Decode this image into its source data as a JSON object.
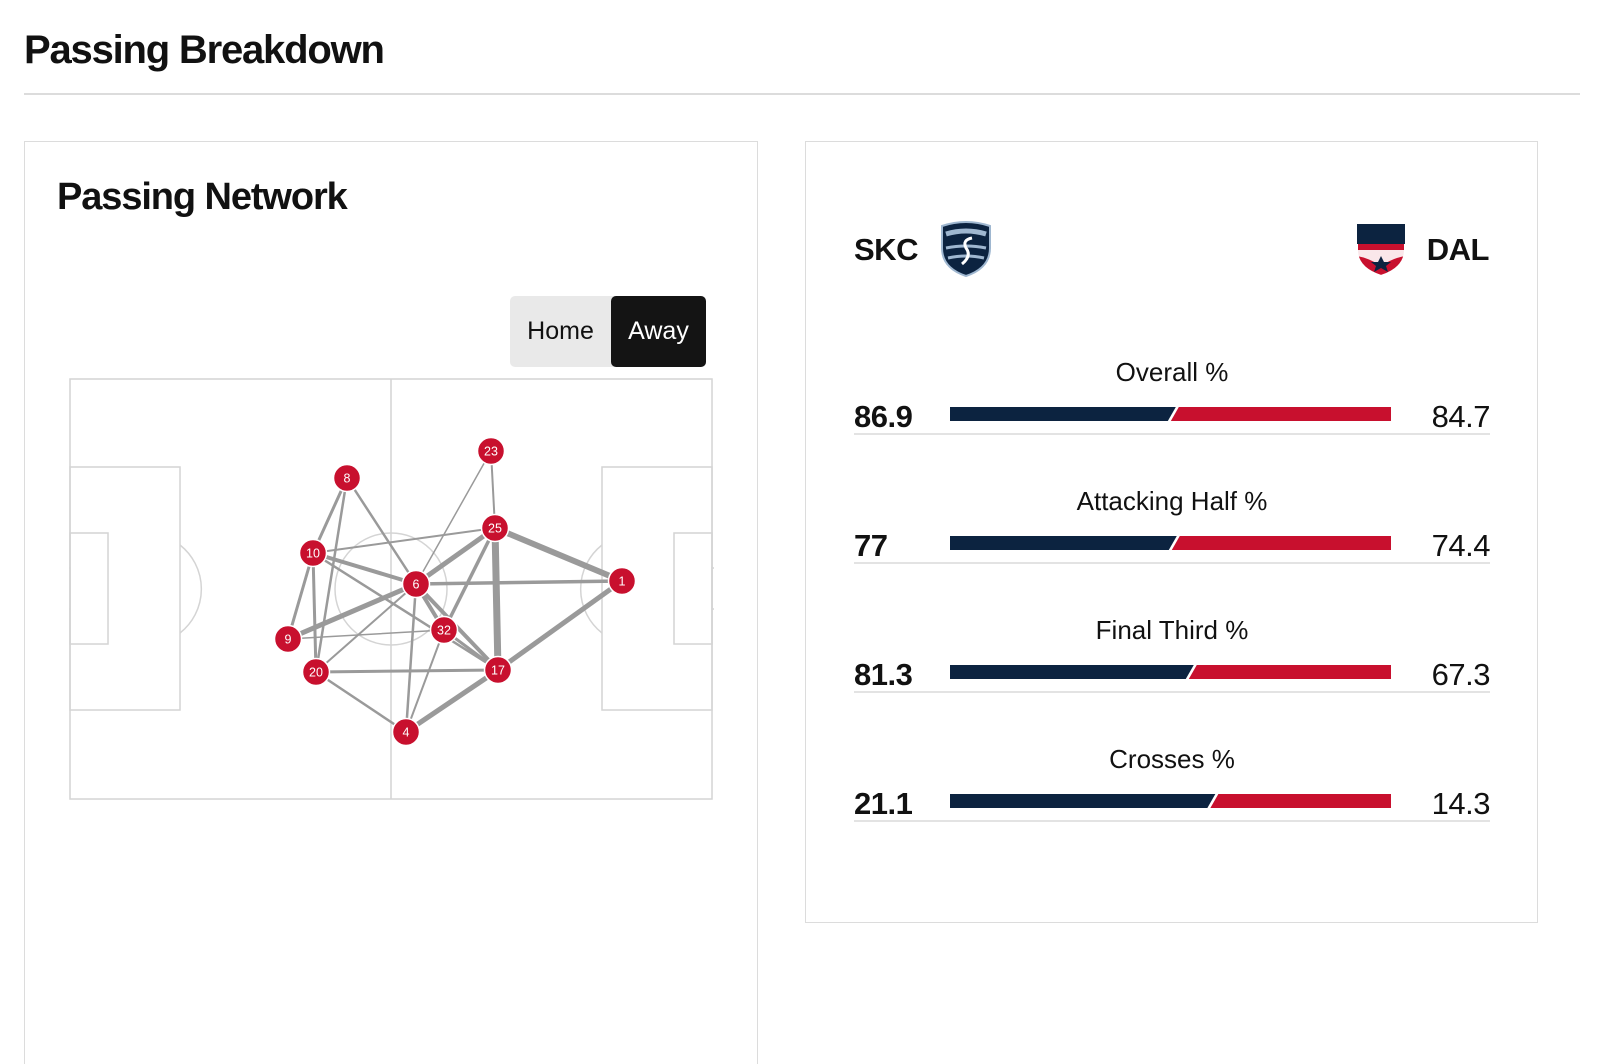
{
  "header": {
    "title": "Passing Breakdown"
  },
  "network": {
    "title": "Passing Network",
    "toggle": {
      "home_label": "Home",
      "away_label": "Away",
      "selected": "Away"
    },
    "node_color": "#c8102e",
    "players": [
      {
        "number": "8"
      },
      {
        "number": "23"
      },
      {
        "number": "25"
      },
      {
        "number": "10"
      },
      {
        "number": "6"
      },
      {
        "number": "1"
      },
      {
        "number": "32"
      },
      {
        "number": "9"
      },
      {
        "number": "20"
      },
      {
        "number": "17"
      },
      {
        "number": "4"
      }
    ]
  },
  "comparison": {
    "home": {
      "code": "SKC",
      "crest_icon": "sporting-kc-crest-icon",
      "color": "#0c2340"
    },
    "away": {
      "code": "DAL",
      "crest_icon": "fc-dallas-crest-icon",
      "color": "#c8102e"
    },
    "stats": [
      {
        "label": "Overall %",
        "home": "86.9",
        "away": "84.7"
      },
      {
        "label": "Attacking Half %",
        "home": "77",
        "away": "74.4"
      },
      {
        "label": "Final Third %",
        "home": "81.3",
        "away": "67.3"
      },
      {
        "label": "Crosses %",
        "home": "21.1",
        "away": "14.3"
      }
    ]
  }
}
